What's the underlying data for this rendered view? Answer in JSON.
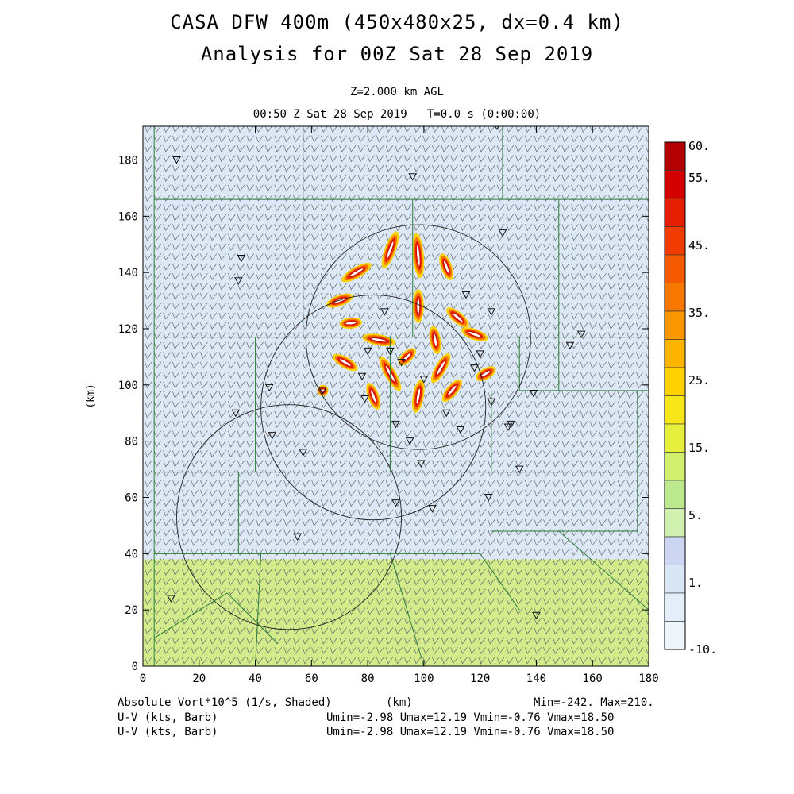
{
  "header": {
    "title_line1": "CASA DFW 400m (450x480x25, dx=0.4 km)",
    "title_line2": "Analysis for 00Z Sat 28 Sep 2019",
    "level": "Z=2.000 km AGL",
    "valid_time": "00:50 Z Sat 28 Sep 2019   T=0.0 s (0:00:00)"
  },
  "footer": {
    "field_label": "Absolute Vort*10^5 (1/s, Shaded)",
    "x_unit": "(km)",
    "minmax": "Min=-242. Max=210.",
    "barb_label_1": "U-V (kts, Barb)",
    "barb_stats_1": "Umin=-2.98 Umax=12.19 Vmin=-0.76 Vmax=18.50",
    "barb_label_2": "U-V (kts, Barb)",
    "barb_stats_2": "Umin=-2.98 Umax=12.19 Vmin=-0.76 Vmax=18.50"
  },
  "chart_data": {
    "type": "heatmap",
    "xlabel": "(km)",
    "ylabel": "(km)",
    "xlim": [
      0,
      180
    ],
    "ylim": [
      0,
      192
    ],
    "x_ticks": [
      0,
      20,
      40,
      60,
      80,
      100,
      120,
      140,
      160,
      180
    ],
    "y_ticks": [
      0,
      20,
      40,
      60,
      80,
      100,
      120,
      140,
      160,
      180
    ],
    "colorbar": {
      "tick_labels": [
        "60.",
        "55.",
        "45.",
        "35.",
        "25.",
        "15.",
        "5.",
        "1.",
        "-10."
      ],
      "colors": [
        "#b30000",
        "#d40000",
        "#e61e00",
        "#f03c00",
        "#f55a00",
        "#f77800",
        "#fa9600",
        "#fcb400",
        "#fed200",
        "#f6e61a",
        "#e6f03c",
        "#d2f06e",
        "#bde98e",
        "#d0f0b0",
        "#ccd6f2",
        "#d8e6f6",
        "#e4eef8",
        "#eef6fc"
      ]
    },
    "background_fields": [
      {
        "x": [
          0,
          180
        ],
        "y": [
          0,
          38
        ],
        "color": "#d2ec8c"
      },
      {
        "x": [
          0,
          180
        ],
        "y": [
          38,
          192
        ],
        "color": "#dce8f6"
      }
    ],
    "vorticity_streaks": [
      {
        "x": 88,
        "y": 148,
        "angle": 70,
        "len": 14
      },
      {
        "x": 98,
        "y": 146,
        "angle": 95,
        "len": 16
      },
      {
        "x": 76,
        "y": 140,
        "angle": 30,
        "len": 12
      },
      {
        "x": 108,
        "y": 142,
        "angle": 110,
        "len": 10
      },
      {
        "x": 70,
        "y": 130,
        "angle": 20,
        "len": 10
      },
      {
        "x": 98,
        "y": 128,
        "angle": 90,
        "len": 12
      },
      {
        "x": 112,
        "y": 124,
        "angle": 140,
        "len": 10
      },
      {
        "x": 74,
        "y": 122,
        "angle": 5,
        "len": 8
      },
      {
        "x": 84,
        "y": 116,
        "angle": 170,
        "len": 12
      },
      {
        "x": 104,
        "y": 116,
        "angle": 100,
        "len": 10
      },
      {
        "x": 118,
        "y": 118,
        "angle": 160,
        "len": 10
      },
      {
        "x": 72,
        "y": 108,
        "angle": 150,
        "len": 10
      },
      {
        "x": 88,
        "y": 104,
        "angle": 120,
        "len": 14
      },
      {
        "x": 106,
        "y": 106,
        "angle": 60,
        "len": 12
      },
      {
        "x": 122,
        "y": 104,
        "angle": 30,
        "len": 8
      },
      {
        "x": 82,
        "y": 96,
        "angle": 110,
        "len": 10
      },
      {
        "x": 98,
        "y": 96,
        "angle": 80,
        "len": 12
      },
      {
        "x": 110,
        "y": 98,
        "angle": 50,
        "len": 10
      },
      {
        "x": 94,
        "y": 110,
        "angle": 45,
        "len": 8
      },
      {
        "x": 64,
        "y": 98,
        "angle": 0,
        "len": 4
      }
    ],
    "range_rings": [
      {
        "x": 98,
        "y": 117,
        "r": 40
      },
      {
        "x": 82,
        "y": 92,
        "r": 40
      },
      {
        "x": 52,
        "y": 53,
        "r": 40
      }
    ],
    "stations": [
      [
        12,
        180
      ],
      [
        35,
        145
      ],
      [
        34,
        137
      ],
      [
        33,
        90
      ],
      [
        45,
        99
      ],
      [
        46,
        82
      ],
      [
        57,
        76
      ],
      [
        55,
        46
      ],
      [
        64,
        98
      ],
      [
        80,
        112
      ],
      [
        79,
        95
      ],
      [
        78,
        103
      ],
      [
        92,
        108
      ],
      [
        95,
        80
      ],
      [
        90,
        58
      ],
      [
        103,
        56
      ],
      [
        108,
        90
      ],
      [
        118,
        106
      ],
      [
        120,
        111
      ],
      [
        124,
        126
      ],
      [
        128,
        154
      ],
      [
        130,
        85
      ],
      [
        131,
        86
      ],
      [
        134,
        70
      ],
      [
        123,
        60
      ],
      [
        124,
        94
      ],
      [
        139,
        97
      ],
      [
        140,
        18
      ],
      [
        152,
        114
      ],
      [
        156,
        118
      ],
      [
        96,
        174
      ],
      [
        126,
        192
      ],
      [
        10,
        24
      ],
      [
        90,
        86
      ],
      [
        100,
        102
      ],
      [
        99,
        72
      ],
      [
        113,
        84
      ],
      [
        86,
        126
      ],
      [
        88,
        112
      ],
      [
        115,
        132
      ]
    ],
    "county_lines": [
      [
        [
          4,
          192
        ],
        [
          4,
          0
        ]
      ],
      [
        [
          4,
          117
        ],
        [
          180,
          117
        ]
      ],
      [
        [
          4,
          166
        ],
        [
          180,
          166
        ]
      ],
      [
        [
          4,
          69
        ],
        [
          180,
          69
        ]
      ],
      [
        [
          57,
          192
        ],
        [
          57,
          166
        ]
      ],
      [
        [
          57,
          166
        ],
        [
          57,
          117
        ]
      ],
      [
        [
          40,
          117
        ],
        [
          40,
          69
        ]
      ],
      [
        [
          96,
          166
        ],
        [
          96,
          117
        ]
      ],
      [
        [
          148,
          166
        ],
        [
          148,
          117
        ]
      ],
      [
        [
          148,
          117
        ],
        [
          148,
          98
        ]
      ],
      [
        [
          134,
          117
        ],
        [
          134,
          98
        ]
      ],
      [
        [
          134,
          98
        ],
        [
          180,
          98
        ]
      ],
      [
        [
          34,
          69
        ],
        [
          34,
          40
        ]
      ],
      [
        [
          88,
          117
        ],
        [
          88,
          69
        ]
      ],
      [
        [
          124,
          98
        ],
        [
          124,
          69
        ]
      ],
      [
        [
          176,
          98
        ],
        [
          176,
          48
        ]
      ],
      [
        [
          124,
          48
        ],
        [
          176,
          48
        ]
      ],
      [
        [
          4,
          40
        ],
        [
          120,
          40
        ]
      ],
      [
        [
          120,
          40
        ],
        [
          134,
          20
        ]
      ],
      [
        [
          4,
          10
        ],
        [
          30,
          26
        ]
      ],
      [
        [
          30,
          26
        ],
        [
          48,
          8
        ]
      ],
      [
        [
          88,
          40
        ],
        [
          100,
          0
        ]
      ],
      [
        [
          148,
          48
        ],
        [
          180,
          20
        ]
      ],
      [
        [
          42,
          40
        ],
        [
          40,
          0
        ]
      ],
      [
        [
          128,
          192
        ],
        [
          128,
          166
        ]
      ]
    ]
  }
}
